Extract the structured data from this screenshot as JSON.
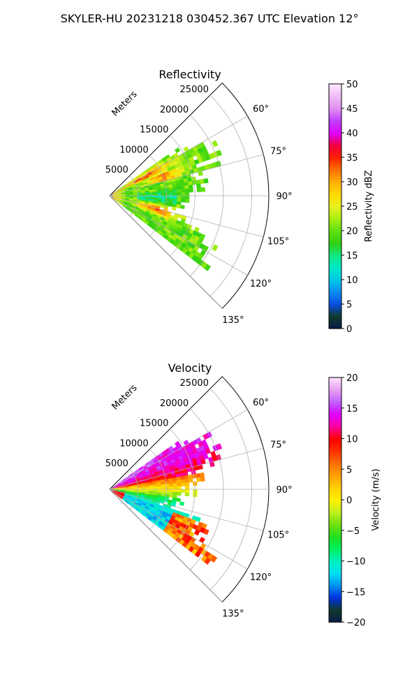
{
  "figure": {
    "title": "SKYLER-HU  20231218  030452.367 UTC Elevation 12°"
  },
  "chart_data": [
    {
      "type": "heatmap",
      "subtype": "polar-sector",
      "title": "Reflectivity",
      "radial_axis": {
        "label": "Meters",
        "range": [
          0,
          28000
        ],
        "ticks": [
          5000,
          10000,
          15000,
          20000,
          25000
        ],
        "tick_labels": [
          "5000",
          "10000",
          "15000",
          "20000",
          "25000"
        ]
      },
      "angular_axis": {
        "range_deg": [
          45,
          135
        ],
        "ticks_deg": [
          60,
          75,
          90,
          105,
          120,
          135
        ],
        "tick_labels": [
          "60°",
          "75°",
          "90°",
          "105°",
          "120°",
          "135°"
        ]
      },
      "grid": true,
      "colorbar": {
        "label": "Reflectivity dBZ",
        "range": [
          0,
          50
        ],
        "ticks": [
          0,
          5,
          10,
          15,
          20,
          25,
          30,
          35,
          40,
          45,
          50
        ],
        "tick_labels": [
          "0",
          "5",
          "10",
          "15",
          "20",
          "25",
          "30",
          "35",
          "40",
          "45",
          "50"
        ],
        "position": "right"
      },
      "data_extent": {
        "azimuth_deg": [
          55,
          128
        ],
        "range_m": [
          0,
          22000
        ]
      },
      "features": [
        {
          "azimuth_deg": [
            57,
            67
          ],
          "range_m": [
            3000,
            12000
          ],
          "value": 35
        },
        {
          "azimuth_deg": [
            65,
            75
          ],
          "range_m": [
            8000,
            14000
          ],
          "value": 37
        },
        {
          "azimuth_deg": [
            100,
            112
          ],
          "range_m": [
            6000,
            13000
          ],
          "value": 33
        },
        {
          "azimuth_deg": [
            85,
            100
          ],
          "range_m": [
            5000,
            12000
          ],
          "value": 14
        },
        {
          "azimuth_deg": [
            55,
            125
          ],
          "range_m": [
            0,
            20000
          ],
          "value": 20
        }
      ]
    },
    {
      "type": "heatmap",
      "subtype": "polar-sector",
      "title": "Velocity",
      "radial_axis": {
        "label": "Meters",
        "range": [
          0,
          28000
        ],
        "ticks": [
          5000,
          10000,
          15000,
          20000,
          25000
        ],
        "tick_labels": [
          "5000",
          "10000",
          "15000",
          "20000",
          "25000"
        ]
      },
      "angular_axis": {
        "range_deg": [
          45,
          135
        ],
        "ticks_deg": [
          60,
          75,
          90,
          105,
          120,
          135
        ],
        "tick_labels": [
          "60°",
          "75°",
          "90°",
          "105°",
          "120°",
          "135°"
        ]
      },
      "grid": true,
      "colorbar": {
        "label": "Velocity (m/s)",
        "range": [
          -20,
          20
        ],
        "ticks": [
          -20,
          -15,
          -10,
          -5,
          0,
          5,
          10,
          15,
          20
        ],
        "tick_labels": [
          "−20",
          "−15",
          "−10",
          "−5",
          "0",
          "5",
          "10",
          "15",
          "20"
        ],
        "position": "right"
      },
      "data_extent": {
        "azimuth_deg": [
          55,
          128
        ],
        "range_m": [
          0,
          22000
        ]
      },
      "features": [
        {
          "azimuth_deg": [
            57,
            68
          ],
          "range_m": [
            8000,
            18000
          ],
          "value": 14
        },
        {
          "azimuth_deg": [
            62,
            85
          ],
          "range_m": [
            4000,
            16000
          ],
          "value": 9
        },
        {
          "azimuth_deg": [
            82,
            98
          ],
          "range_m": [
            0,
            15000
          ],
          "value": 0
        },
        {
          "azimuth_deg": [
            98,
            112
          ],
          "range_m": [
            0,
            14000
          ],
          "value": -8
        },
        {
          "azimuth_deg": [
            105,
            118
          ],
          "range_m": [
            3000,
            12000
          ],
          "value": -12
        },
        {
          "azimuth_deg": [
            113,
            126
          ],
          "range_m": [
            13000,
            20000
          ],
          "value": 8
        }
      ]
    }
  ]
}
